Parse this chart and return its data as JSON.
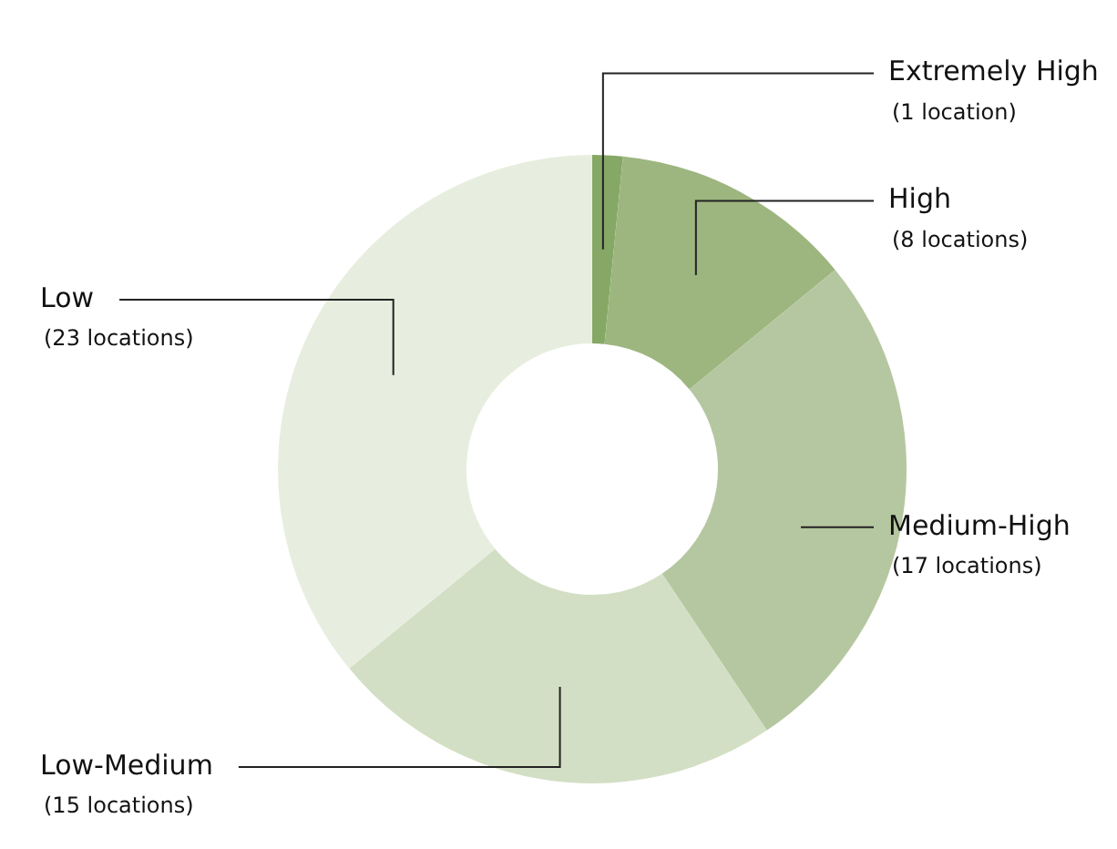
{
  "chart_data": {
    "type": "donut",
    "categories": [
      "Extremely High",
      "High",
      "Medium-High",
      "Low-Medium",
      "Low"
    ],
    "values": [
      1,
      8,
      17,
      15,
      23
    ],
    "colors": [
      "#86a866",
      "#9db67f",
      "#b5c7a0",
      "#d3dfc5",
      "#e7eedf"
    ],
    "value_labels": [
      "(1 location)",
      "(8 locations)",
      "(17 locations)",
      "(15 locations)",
      "(23 locations)"
    ],
    "legend": false
  }
}
